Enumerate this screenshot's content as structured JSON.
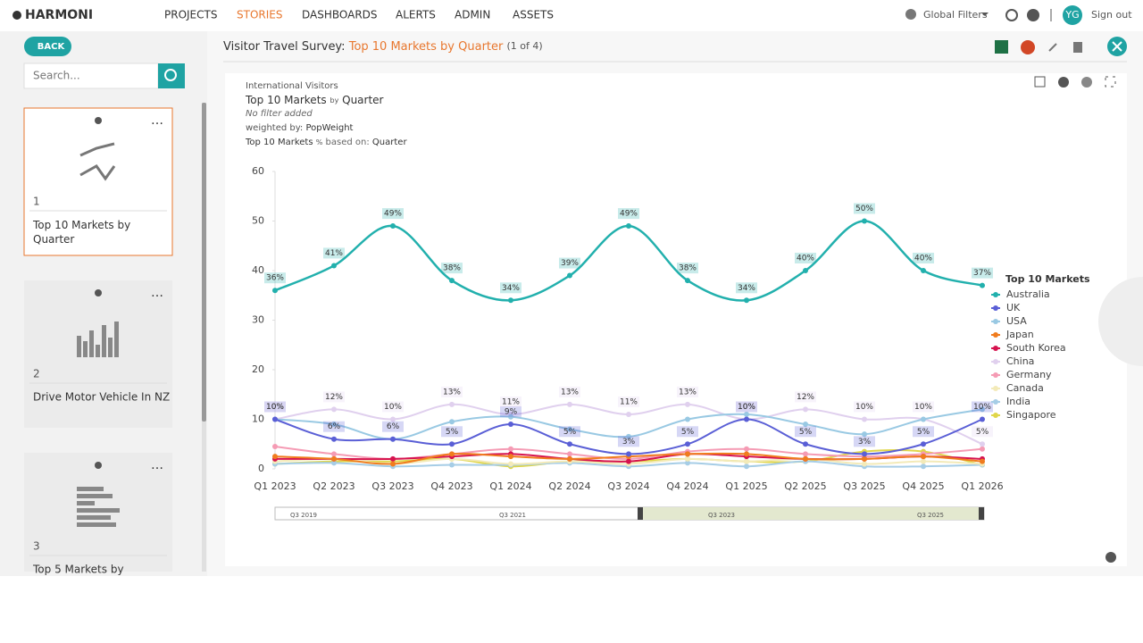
{
  "nav": {
    "brand": "HARMONI",
    "items": [
      "PROJECTS",
      "STORIES",
      "DASHBOARDS",
      "ALERTS",
      "ADMIN",
      "ASSETS"
    ],
    "active": 1,
    "global_filters": "Global Filters",
    "avatar": "YG",
    "sign_out": "Sign out"
  },
  "sidebar": {
    "back": "BACK",
    "search_placeholder": "Search...",
    "cards": [
      {
        "number": "1",
        "title": "Top 10 Markets by Quarter"
      },
      {
        "number": "2",
        "title": "Drive Motor Vehicle In NZ"
      },
      {
        "number": "3",
        "title": "Top 5 Markets by"
      }
    ]
  },
  "story": {
    "title_prefix": "Visitor Travel Survey:",
    "title_highlight": "Top 10 Markets by Quarter",
    "count": "(1 of 4)"
  },
  "chart_meta": {
    "dataset": "International Visitors",
    "heading_a": "Top 10 Markets",
    "by": "by",
    "heading_b": "Quarter",
    "filter": "No filter added",
    "weighted_label": "weighted by:",
    "weighted_value": "PopWeight",
    "pct_a": "Top 10 Markets",
    "pct": "%",
    "based_label": "based on:",
    "based_value": "Quarter"
  },
  "chart_data": {
    "type": "line",
    "categories": [
      "Q1 2023",
      "Q2 2023",
      "Q3 2023",
      "Q4 2023",
      "Q1 2024",
      "Q2 2024",
      "Q3 2024",
      "Q4 2024",
      "Q1 2025",
      "Q2 2025",
      "Q3 2025",
      "Q4 2025",
      "Q1 2026"
    ],
    "ylim": [
      0,
      60
    ],
    "yticks": [
      0,
      10,
      20,
      30,
      40,
      50,
      60
    ],
    "grid": false,
    "legend_title": "Top 10 Markets",
    "legend": "right",
    "range_labels": [
      "Q3 2019",
      "Q3 2021",
      "Q3 2023",
      "Q3 2025"
    ],
    "series": [
      {
        "name": "Australia",
        "color": "#22b0ad",
        "values": [
          36,
          41,
          49,
          38,
          34,
          39,
          49,
          38,
          34,
          40,
          50,
          40,
          37
        ],
        "value_labels": [
          "36%",
          "41%",
          "49%",
          "38%",
          "34%",
          "39%",
          "49%",
          "38%",
          "34%",
          "40%",
          "50%",
          "40%",
          "37%"
        ]
      },
      {
        "name": "UK",
        "color": "#5a5fd6",
        "values": [
          10,
          6,
          6,
          5,
          9,
          5,
          3,
          5,
          10,
          5,
          3,
          5,
          10
        ],
        "value_labels": [
          "10%",
          "6%",
          "6%",
          "5%",
          "9%",
          "5%",
          "3%",
          "5%",
          "10%",
          "5%",
          "3%",
          "5%",
          "10%"
        ]
      },
      {
        "name": "USA",
        "color": "#99c9e3",
        "values": [
          10,
          9,
          6,
          9.5,
          10.5,
          8,
          6.5,
          10,
          11,
          9,
          7,
          10,
          12
        ]
      },
      {
        "name": "Japan",
        "color": "#f07c1e",
        "values": [
          2.5,
          2,
          1,
          3,
          2.5,
          2,
          2.5,
          3,
          3,
          2,
          2,
          2.5,
          1.5
        ]
      },
      {
        "name": "South Korea",
        "color": "#d6134f",
        "values": [
          2,
          2,
          2,
          2.5,
          3,
          2,
          1.5,
          3,
          2.5,
          2,
          2,
          2.5,
          2
        ]
      },
      {
        "name": "China",
        "color": "#e0d0ee",
        "values": [
          10,
          12,
          10,
          13,
          11,
          13,
          11,
          13,
          10,
          12,
          10,
          10,
          5
        ],
        "value_labels": [
          "10%",
          "12%",
          "10%",
          "13%",
          "11%",
          "13%",
          "11%",
          "13%",
          "10%",
          "12%",
          "10%",
          "10%",
          "5%"
        ]
      },
      {
        "name": "Germany",
        "color": "#f59bb4",
        "values": [
          4.5,
          3,
          2,
          3,
          4,
          3,
          2,
          3.5,
          4,
          3,
          2.5,
          3,
          4
        ]
      },
      {
        "name": "Canada",
        "color": "#f3eab8",
        "values": [
          1.5,
          2,
          1,
          2,
          1,
          1.5,
          1,
          2,
          1.5,
          2,
          1,
          1.5,
          1
        ]
      },
      {
        "name": "India",
        "color": "#a6cde6",
        "values": [
          1,
          1.2,
          0.5,
          0.8,
          0.8,
          1.2,
          0.5,
          1.2,
          0.5,
          1.5,
          0.5,
          0.5,
          0.8
        ]
      },
      {
        "name": "Singapore",
        "color": "#e0d64a",
        "values": [
          1,
          1.5,
          1.5,
          2,
          0.5,
          1.5,
          1.5,
          2,
          1.5,
          1.5,
          3.5,
          3.5,
          0.8
        ]
      }
    ]
  }
}
